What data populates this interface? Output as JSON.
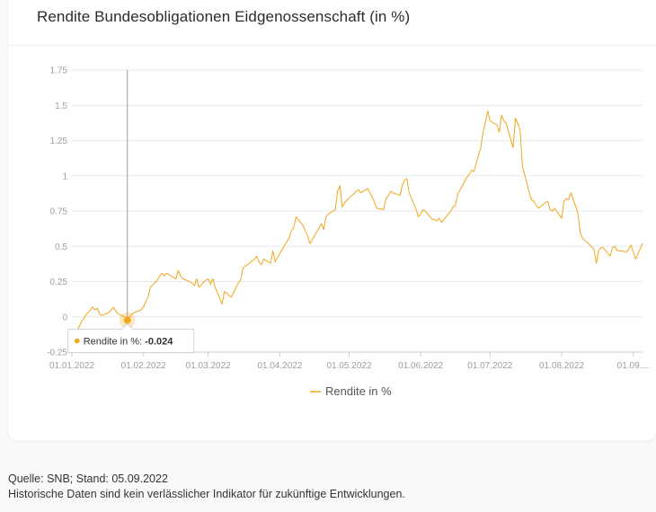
{
  "card": {
    "title": "Rendite Bundesobligationen Eidgenossenschaft (in %)"
  },
  "footer": {
    "source": "Quelle: SNB; Stand: 05.09.2022",
    "disclaimer": "Historische Daten sind kein verlässlicher Indikator für zukünftige Entwicklungen."
  },
  "tooltip": {
    "label": "Rendite in %: ",
    "value": "-0.024",
    "date": "2022-01-25"
  },
  "colors": {
    "series": "#f0a71c",
    "grid": "#e6e8eb",
    "axis": "#c8ccd1",
    "crosshair": "#9aa0a6"
  },
  "chart_data": {
    "type": "line",
    "title": "Rendite Bundesobligationen Eidgenossenschaft (in %)",
    "xlabel": "",
    "ylabel": "",
    "ylim": [
      -0.25,
      1.75
    ],
    "xlim": [
      "2022-01-01",
      "2022-09-05"
    ],
    "y_ticks": [
      "-0.25",
      "0",
      "0.25",
      "0.5",
      "0.75",
      "1",
      "1.25",
      "1.5",
      "1.75"
    ],
    "x_ticks": [
      {
        "date": "2022-01-01",
        "label": "01.01.2022"
      },
      {
        "date": "2022-02-01",
        "label": "01.02.2022"
      },
      {
        "date": "2022-03-01",
        "label": "01.03.2022"
      },
      {
        "date": "2022-04-01",
        "label": "01.04.2022"
      },
      {
        "date": "2022-05-01",
        "label": "01.05.2022"
      },
      {
        "date": "2022-06-01",
        "label": "01.06.2022"
      },
      {
        "date": "2022-07-01",
        "label": "01.07.2022"
      },
      {
        "date": "2022-08-01",
        "label": "01.08.2022"
      },
      {
        "date": "2022-09-01",
        "label": "01.09...."
      }
    ],
    "grid": true,
    "legend": "bottom",
    "series": [
      {
        "name": "Rendite in %",
        "points": [
          [
            "2022-01-03",
            -0.11
          ],
          [
            "2022-01-05",
            -0.04
          ],
          [
            "2022-01-07",
            0.01
          ],
          [
            "2022-01-10",
            0.07
          ],
          [
            "2022-01-11",
            0.05
          ],
          [
            "2022-01-12",
            0.06
          ],
          [
            "2022-01-13",
            0.02
          ],
          [
            "2022-01-14",
            0.01
          ],
          [
            "2022-01-17",
            0.03
          ],
          [
            "2022-01-19",
            0.07
          ],
          [
            "2022-01-20",
            0.04
          ],
          [
            "2022-01-21",
            0.02
          ],
          [
            "2022-01-24",
            0.0
          ],
          [
            "2022-01-25",
            -0.024
          ],
          [
            "2022-01-26",
            0.0
          ],
          [
            "2022-01-27",
            0.02
          ],
          [
            "2022-01-28",
            0.03
          ],
          [
            "2022-01-31",
            0.05
          ],
          [
            "2022-02-01",
            0.07
          ],
          [
            "2022-02-02",
            0.11
          ],
          [
            "2022-02-03",
            0.14
          ],
          [
            "2022-02-04",
            0.21
          ],
          [
            "2022-02-07",
            0.26
          ],
          [
            "2022-02-08",
            0.29
          ],
          [
            "2022-02-09",
            0.31
          ],
          [
            "2022-02-10",
            0.29
          ],
          [
            "2022-02-11",
            0.31
          ],
          [
            "2022-02-14",
            0.28
          ],
          [
            "2022-02-15",
            0.27
          ],
          [
            "2022-02-16",
            0.33
          ],
          [
            "2022-02-17",
            0.29
          ],
          [
            "2022-02-18",
            0.27
          ],
          [
            "2022-02-21",
            0.25
          ],
          [
            "2022-02-22",
            0.24
          ],
          [
            "2022-02-23",
            0.22
          ],
          [
            "2022-02-24",
            0.27
          ],
          [
            "2022-02-25",
            0.21
          ],
          [
            "2022-02-28",
            0.26
          ],
          [
            "2022-03-01",
            0.27
          ],
          [
            "2022-03-02",
            0.23
          ],
          [
            "2022-03-03",
            0.27
          ],
          [
            "2022-03-04",
            0.21
          ],
          [
            "2022-03-07",
            0.09
          ],
          [
            "2022-03-08",
            0.18
          ],
          [
            "2022-03-09",
            0.17
          ],
          [
            "2022-03-10",
            0.15
          ],
          [
            "2022-03-11",
            0.14
          ],
          [
            "2022-03-14",
            0.24
          ],
          [
            "2022-03-15",
            0.26
          ],
          [
            "2022-03-16",
            0.34
          ],
          [
            "2022-03-17",
            0.36
          ],
          [
            "2022-03-18",
            0.37
          ],
          [
            "2022-03-21",
            0.41
          ],
          [
            "2022-03-22",
            0.43
          ],
          [
            "2022-03-23",
            0.39
          ],
          [
            "2022-03-24",
            0.37
          ],
          [
            "2022-03-25",
            0.41
          ],
          [
            "2022-03-28",
            0.38
          ],
          [
            "2022-03-29",
            0.47
          ],
          [
            "2022-03-30",
            0.39
          ],
          [
            "2022-03-31",
            0.42
          ],
          [
            "2022-04-01",
            0.45
          ],
          [
            "2022-04-04",
            0.53
          ],
          [
            "2022-04-05",
            0.56
          ],
          [
            "2022-04-06",
            0.61
          ],
          [
            "2022-04-07",
            0.63
          ],
          [
            "2022-04-08",
            0.71
          ],
          [
            "2022-04-11",
            0.65
          ],
          [
            "2022-04-12",
            0.61
          ],
          [
            "2022-04-13",
            0.58
          ],
          [
            "2022-04-14",
            0.52
          ],
          [
            "2022-04-19",
            0.66
          ],
          [
            "2022-04-20",
            0.62
          ],
          [
            "2022-04-21",
            0.71
          ],
          [
            "2022-04-22",
            0.73
          ],
          [
            "2022-04-25",
            0.76
          ],
          [
            "2022-04-26",
            0.89
          ],
          [
            "2022-04-27",
            0.93
          ],
          [
            "2022-04-28",
            0.78
          ],
          [
            "2022-04-29",
            0.81
          ],
          [
            "2022-05-02",
            0.86
          ],
          [
            "2022-05-03",
            0.87
          ],
          [
            "2022-05-04",
            0.89
          ],
          [
            "2022-05-05",
            0.9
          ],
          [
            "2022-05-06",
            0.88
          ],
          [
            "2022-05-09",
            0.91
          ],
          [
            "2022-05-10",
            0.88
          ],
          [
            "2022-05-11",
            0.85
          ],
          [
            "2022-05-12",
            0.81
          ],
          [
            "2022-05-13",
            0.77
          ],
          [
            "2022-05-16",
            0.76
          ],
          [
            "2022-05-17",
            0.84
          ],
          [
            "2022-05-18",
            0.86
          ],
          [
            "2022-05-19",
            0.89
          ],
          [
            "2022-05-20",
            0.88
          ],
          [
            "2022-05-23",
            0.86
          ],
          [
            "2022-05-24",
            0.93
          ],
          [
            "2022-05-25",
            0.97
          ],
          [
            "2022-05-26",
            0.98
          ],
          [
            "2022-05-27",
            0.88
          ],
          [
            "2022-05-30",
            0.76
          ],
          [
            "2022-05-31",
            0.71
          ],
          [
            "2022-06-01",
            0.73
          ],
          [
            "2022-06-02",
            0.76
          ],
          [
            "2022-06-03",
            0.75
          ],
          [
            "2022-06-06",
            0.69
          ],
          [
            "2022-06-07",
            0.69
          ],
          [
            "2022-06-08",
            0.68
          ],
          [
            "2022-06-09",
            0.7
          ],
          [
            "2022-06-10",
            0.67
          ],
          [
            "2022-06-13",
            0.73
          ],
          [
            "2022-06-14",
            0.75
          ],
          [
            "2022-06-15",
            0.78
          ],
          [
            "2022-06-16",
            0.79
          ],
          [
            "2022-06-17",
            0.87
          ],
          [
            "2022-06-20",
            0.96
          ],
          [
            "2022-06-21",
            0.99
          ],
          [
            "2022-06-22",
            1.01
          ],
          [
            "2022-06-23",
            1.04
          ],
          [
            "2022-06-24",
            1.03
          ],
          [
            "2022-06-27",
            1.2
          ],
          [
            "2022-06-28",
            1.31
          ],
          [
            "2022-06-29",
            1.38
          ],
          [
            "2022-06-30",
            1.46
          ],
          [
            "2022-07-01",
            1.39
          ],
          [
            "2022-07-04",
            1.36
          ],
          [
            "2022-07-05",
            1.31
          ],
          [
            "2022-07-06",
            1.43
          ],
          [
            "2022-07-07",
            1.39
          ],
          [
            "2022-07-08",
            1.37
          ],
          [
            "2022-07-11",
            1.2
          ],
          [
            "2022-07-12",
            1.41
          ],
          [
            "2022-07-13",
            1.37
          ],
          [
            "2022-07-14",
            1.33
          ],
          [
            "2022-07-15",
            1.07
          ],
          [
            "2022-07-18",
            0.88
          ],
          [
            "2022-07-19",
            0.83
          ],
          [
            "2022-07-20",
            0.82
          ],
          [
            "2022-07-21",
            0.79
          ],
          [
            "2022-07-22",
            0.77
          ],
          [
            "2022-07-25",
            0.81
          ],
          [
            "2022-07-26",
            0.82
          ],
          [
            "2022-07-27",
            0.76
          ],
          [
            "2022-07-28",
            0.75
          ],
          [
            "2022-07-29",
            0.77
          ],
          [
            "2022-08-01",
            0.7
          ],
          [
            "2022-08-02",
            0.82
          ],
          [
            "2022-08-03",
            0.84
          ],
          [
            "2022-08-04",
            0.83
          ],
          [
            "2022-08-05",
            0.88
          ],
          [
            "2022-08-08",
            0.74
          ],
          [
            "2022-08-09",
            0.6
          ],
          [
            "2022-08-10",
            0.56
          ],
          [
            "2022-08-11",
            0.54
          ],
          [
            "2022-08-12",
            0.53
          ],
          [
            "2022-08-15",
            0.48
          ],
          [
            "2022-08-16",
            0.38
          ],
          [
            "2022-08-17",
            0.47
          ],
          [
            "2022-08-18",
            0.49
          ],
          [
            "2022-08-19",
            0.49
          ],
          [
            "2022-08-22",
            0.43
          ],
          [
            "2022-08-23",
            0.49
          ],
          [
            "2022-08-24",
            0.5
          ],
          [
            "2022-08-25",
            0.47
          ],
          [
            "2022-08-26",
            0.47
          ],
          [
            "2022-08-29",
            0.46
          ],
          [
            "2022-08-30",
            0.48
          ],
          [
            "2022-08-31",
            0.51
          ],
          [
            "2022-09-01",
            0.46
          ],
          [
            "2022-09-02",
            0.41
          ],
          [
            "2022-09-05",
            0.52
          ]
        ]
      }
    ]
  }
}
